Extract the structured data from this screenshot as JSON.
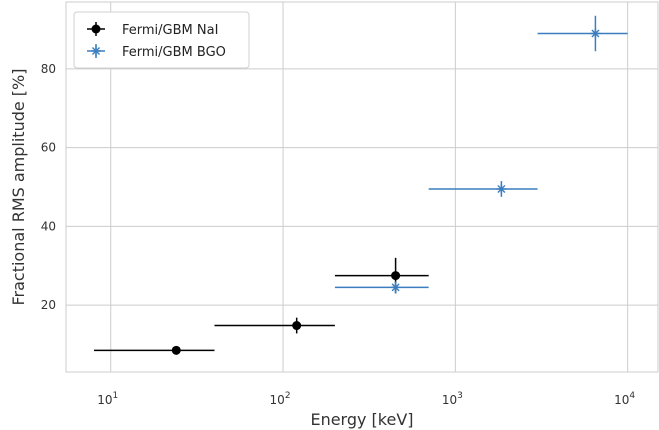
{
  "chart_data": {
    "type": "scatter",
    "xlabel": "Energy [keV]",
    "ylabel": "Fractional RMS amplitude [%]",
    "xscale": "log",
    "xlim": [
      5.5,
      15000
    ],
    "ylim": [
      3,
      97
    ],
    "grid": true,
    "legend_position": "top-left",
    "x_ticks": [
      {
        "value": 10,
        "base": "10",
        "exp": "1"
      },
      {
        "value": 100,
        "base": "10",
        "exp": "2"
      },
      {
        "value": 1000,
        "base": "10",
        "exp": "3"
      },
      {
        "value": 10000,
        "base": "10",
        "exp": "4"
      }
    ],
    "y_ticks": [
      {
        "value": 20,
        "label": "20"
      },
      {
        "value": 40,
        "label": "40"
      },
      {
        "value": 60,
        "label": "60"
      },
      {
        "value": 80,
        "label": "80"
      }
    ],
    "series": [
      {
        "name": "Fermi/GBM NaI",
        "color": "#000000",
        "marker": "circle",
        "points": [
          {
            "x": 24,
            "y": 8.5,
            "xmin": 8,
            "xmax": 40,
            "yerr": 0.8
          },
          {
            "x": 120,
            "y": 14.8,
            "xmin": 40,
            "xmax": 200,
            "yerr": 2.0
          },
          {
            "x": 450,
            "y": 27.5,
            "xmin": 200,
            "xmax": 700,
            "yerr": 4.5
          }
        ]
      },
      {
        "name": "Fermi/GBM BGO",
        "color": "#3a7ebf",
        "marker": "star",
        "points": [
          {
            "x": 450,
            "y": 24.5,
            "xmin": 200,
            "xmax": 700,
            "yerr": 1.5
          },
          {
            "x": 1850,
            "y": 49.5,
            "xmin": 700,
            "xmax": 3000,
            "yerr": 2.0
          },
          {
            "x": 6500,
            "y": 89,
            "xmin": 3000,
            "xmax": 10000,
            "yerr": 4.5
          }
        ]
      }
    ]
  }
}
